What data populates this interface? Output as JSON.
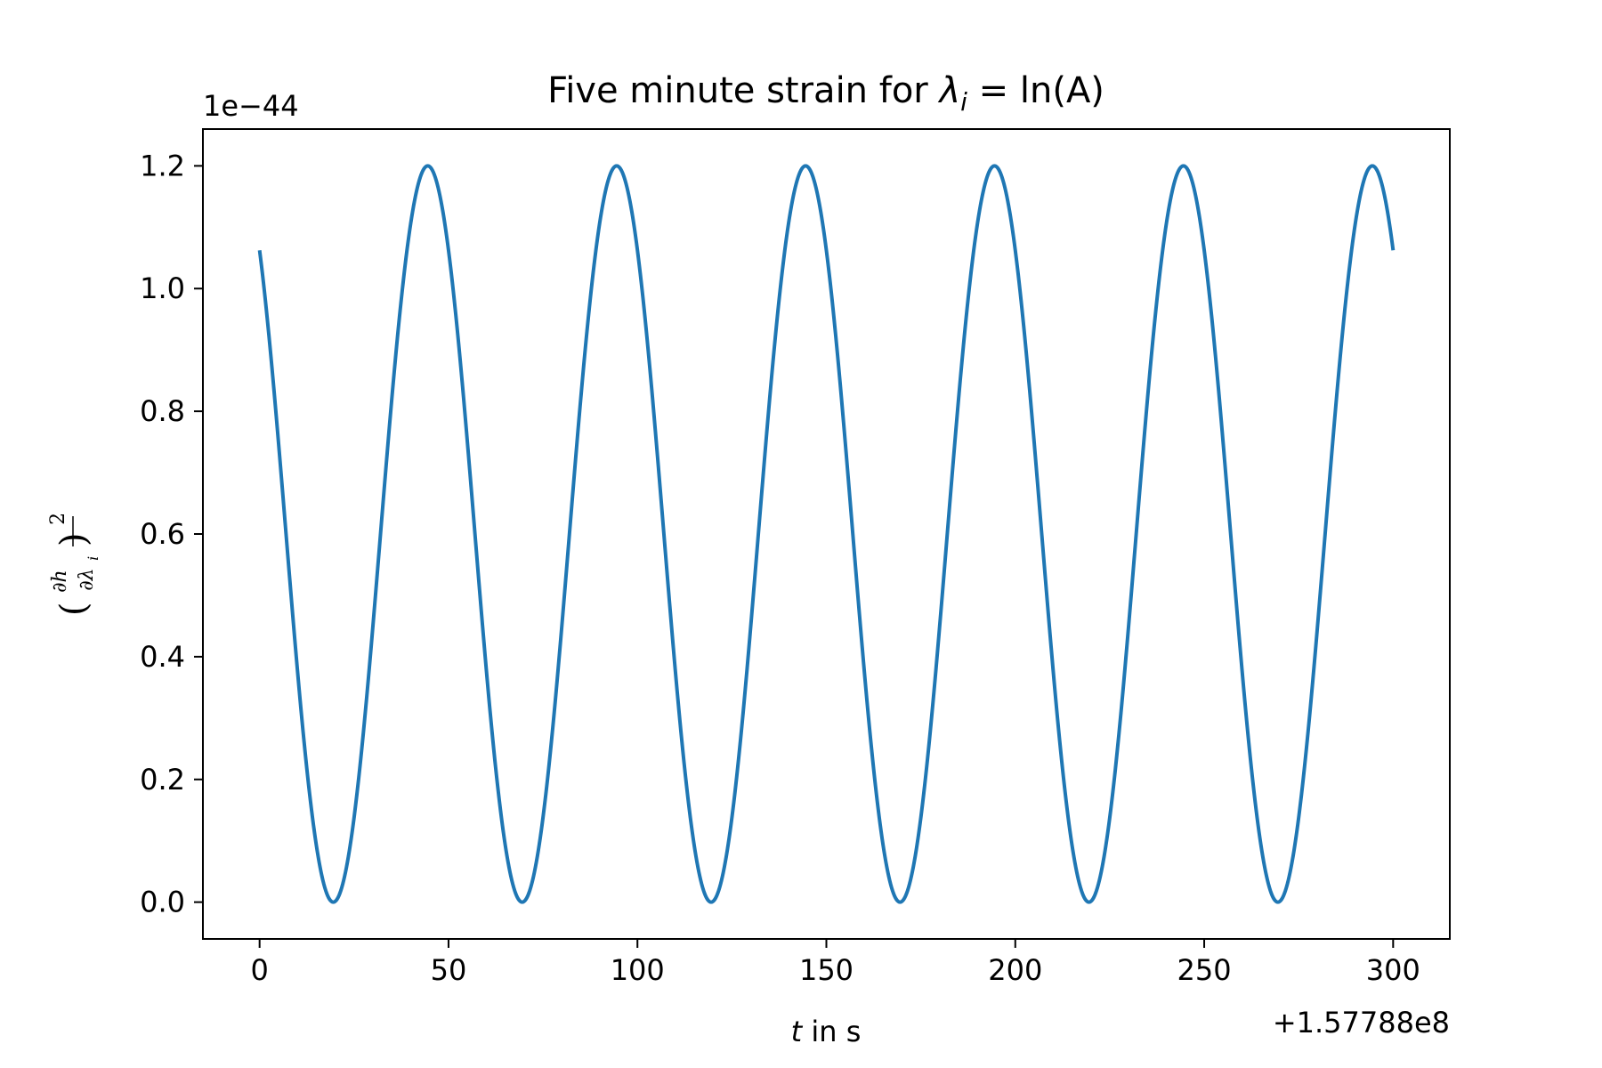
{
  "chart_data": {
    "type": "line",
    "title_prefix": "Five minute strain for ",
    "title_symbol": "λ",
    "title_subscript": "i",
    "title_suffix": " = ln(A)",
    "xlabel_var": "t",
    "xlabel_rest": " in s",
    "ylabel_numerator": "∂h",
    "ylabel_denominator": "∂λ",
    "ylabel_subscript": "i",
    "ylabel_power": "2",
    "y_scale_label": "1e−44",
    "x_offset_label": "+1.57788e8",
    "xlim": [
      -15,
      315
    ],
    "ylim": [
      -0.06,
      1.26
    ],
    "x_ticks": [
      0,
      50,
      100,
      150,
      200,
      250,
      300
    ],
    "x_tick_labels": [
      "0",
      "50",
      "100",
      "150",
      "200",
      "250",
      "300"
    ],
    "y_ticks": [
      0.0,
      0.2,
      0.4,
      0.6,
      0.8,
      1.0,
      1.2
    ],
    "y_tick_labels": [
      "0.0",
      "0.2",
      "0.4",
      "0.6",
      "0.8",
      "1.0",
      "1.2"
    ],
    "series": [
      {
        "name": "strain",
        "color": "#1f77b4",
        "amplitude": 1.2,
        "period": 50,
        "phase_peak_x": 44.5,
        "x_range": [
          0,
          300
        ],
        "peaks_x": [
          44.5,
          94.5,
          144.5,
          194.5,
          244.5,
          294.5
        ],
        "troughs_x": [
          19.5,
          69.5,
          119.5,
          169.5,
          219.5,
          269.5
        ],
        "start_y": 1.055,
        "end_y": 1.05
      }
    ]
  }
}
